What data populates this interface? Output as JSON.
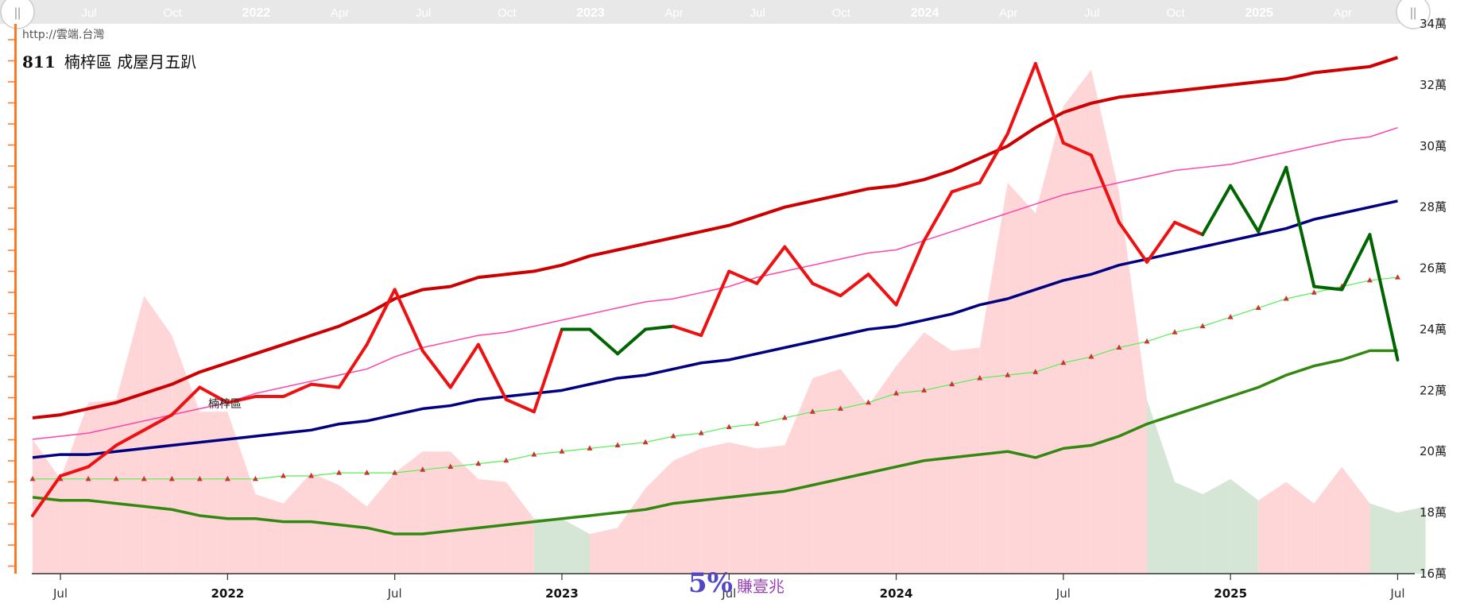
{
  "url": "http://雲端.台灣",
  "title": {
    "num": "811",
    "text": "楠梓區 成屋月五趴"
  },
  "annotation": "楠梓區",
  "logo": {
    "big": "5%",
    "small": "賺壹兆"
  },
  "navigator": {
    "handle_left": "||",
    "handle_right": "||",
    "labels": [
      {
        "t": "Jul",
        "m": 1,
        "bold": false
      },
      {
        "t": "Oct",
        "m": 4,
        "bold": false
      },
      {
        "t": "2022",
        "m": 7,
        "bold": true
      },
      {
        "t": "Apr",
        "m": 10,
        "bold": false
      },
      {
        "t": "Jul",
        "m": 13,
        "bold": false
      },
      {
        "t": "Oct",
        "m": 16,
        "bold": false
      },
      {
        "t": "2023",
        "m": 19,
        "bold": true
      },
      {
        "t": "Apr",
        "m": 22,
        "bold": false
      },
      {
        "t": "Jul",
        "m": 25,
        "bold": false
      },
      {
        "t": "Oct",
        "m": 28,
        "bold": false
      },
      {
        "t": "2024",
        "m": 31,
        "bold": true
      },
      {
        "t": "Apr",
        "m": 34,
        "bold": false
      },
      {
        "t": "Jul",
        "m": 37,
        "bold": false
      },
      {
        "t": "Oct",
        "m": 40,
        "bold": false
      },
      {
        "t": "2025",
        "m": 43,
        "bold": true
      },
      {
        "t": "Apr",
        "m": 46,
        "bold": false
      },
      {
        "t": "Jul",
        "m": 49,
        "bold": false
      }
    ]
  },
  "chart_data": {
    "type": "line",
    "x_start": "2021-06",
    "x_end": "2025-07",
    "x_ticks": [
      {
        "label": "Jul",
        "m": 1,
        "bold": false
      },
      {
        "label": "2022",
        "m": 7,
        "bold": true
      },
      {
        "label": "Jul",
        "m": 13,
        "bold": false
      },
      {
        "label": "2023",
        "m": 19,
        "bold": true
      },
      {
        "label": "2023-Jul",
        "m": 25,
        "bold": false
      },
      {
        "label": "2024",
        "m": 31,
        "bold": true
      },
      {
        "label": "Jul",
        "m": 37,
        "bold": false
      },
      {
        "label": "2025",
        "m": 43,
        "bold": true
      },
      {
        "label": "Jul",
        "m": 49,
        "bold": false
      }
    ],
    "y_ticks": [
      {
        "label": "16萬",
        "v": 16
      },
      {
        "label": "18萬",
        "v": 18
      },
      {
        "label": "20萬",
        "v": 20
      },
      {
        "label": "22萬",
        "v": 22
      },
      {
        "label": "24萬",
        "v": 24
      },
      {
        "label": "26萬",
        "v": 26
      },
      {
        "label": "28萬",
        "v": 28
      },
      {
        "label": "30萬",
        "v": 30
      },
      {
        "label": "32萬",
        "v": 32
      },
      {
        "label": "34萬",
        "v": 34
      }
    ],
    "ylim": [
      16,
      34
    ],
    "area": {
      "pink": "#ffd6d8",
      "green": "#d6e6d6",
      "values": [
        20.4,
        19.1,
        21.6,
        21.7,
        25.1,
        23.8,
        21.3,
        21.3,
        18.6,
        18.3,
        19.3,
        18.9,
        18.2,
        19.3,
        20.0,
        20.0,
        19.1,
        19.0,
        17.8,
        17.8,
        17.3,
        17.5,
        18.8,
        19.7,
        20.1,
        20.3,
        20.1,
        20.2,
        22.4,
        22.7,
        21.5,
        22.8,
        23.9,
        23.3,
        23.4,
        28.8,
        27.8,
        31.3,
        32.5,
        28.5,
        21.7,
        19.0,
        18.6,
        19.1,
        18.4,
        19.0,
        18.3,
        19.5,
        18.3,
        18.0,
        18.2
      ],
      "green_months": [
        16,
        18,
        19,
        20,
        40,
        41,
        42,
        43,
        44,
        46,
        48,
        49,
        50
      ]
    },
    "series": [
      {
        "role": "price",
        "color": "#ee1111",
        "dip_color": "#006400",
        "width": 4,
        "values": [
          17.9,
          19.2,
          19.5,
          20.2,
          20.7,
          21.2,
          22.1,
          21.6,
          21.8,
          21.8,
          22.2,
          22.1,
          23.5,
          25.3,
          23.3,
          22.1,
          23.5,
          21.7,
          21.3,
          24.0,
          24.0,
          23.2,
          24.0,
          24.1,
          23.8,
          25.9,
          25.5,
          26.7,
          25.5,
          25.1,
          25.8,
          24.8,
          26.9,
          28.5,
          28.8,
          30.4,
          32.7,
          30.1,
          29.7,
          27.5,
          26.2,
          27.5,
          27.1,
          28.7,
          27.2,
          29.3,
          25.4,
          25.3,
          27.1,
          23.0
        ]
      },
      {
        "role": "upper",
        "color": "#cc0000",
        "width": 4,
        "values": [
          21.1,
          21.2,
          21.4,
          21.6,
          21.9,
          22.2,
          22.6,
          22.9,
          23.2,
          23.5,
          23.8,
          24.1,
          24.5,
          25.0,
          25.3,
          25.4,
          25.7,
          25.8,
          25.9,
          26.1,
          26.4,
          26.6,
          26.8,
          27.0,
          27.2,
          27.4,
          27.7,
          28.0,
          28.2,
          28.4,
          28.6,
          28.7,
          28.9,
          29.2,
          29.6,
          30.0,
          30.6,
          31.1,
          31.4,
          31.6,
          31.7,
          31.8,
          31.9,
          32.0,
          32.1,
          32.2,
          32.4,
          32.5,
          32.6,
          32.9
        ]
      },
      {
        "role": "pink-mid",
        "color": "#ff44aa",
        "width": 1.5,
        "values": [
          20.4,
          20.5,
          20.6,
          20.8,
          21.0,
          21.2,
          21.4,
          21.6,
          21.9,
          22.1,
          22.3,
          22.5,
          22.7,
          23.1,
          23.4,
          23.6,
          23.8,
          23.9,
          24.1,
          24.3,
          24.5,
          24.7,
          24.9,
          25.0,
          25.2,
          25.4,
          25.7,
          25.9,
          26.1,
          26.3,
          26.5,
          26.6,
          26.9,
          27.2,
          27.5,
          27.8,
          28.1,
          28.4,
          28.6,
          28.8,
          29.0,
          29.2,
          29.3,
          29.4,
          29.6,
          29.8,
          30.0,
          30.2,
          30.3,
          30.6
        ]
      },
      {
        "role": "mid",
        "color": "#000080",
        "width": 3.5,
        "values": [
          19.8,
          19.9,
          19.9,
          20.0,
          20.1,
          20.2,
          20.3,
          20.4,
          20.5,
          20.6,
          20.7,
          20.9,
          21.0,
          21.2,
          21.4,
          21.5,
          21.7,
          21.8,
          21.9,
          22.0,
          22.2,
          22.4,
          22.5,
          22.7,
          22.9,
          23.0,
          23.2,
          23.4,
          23.6,
          23.8,
          24.0,
          24.1,
          24.3,
          24.5,
          24.8,
          25.0,
          25.3,
          25.6,
          25.8,
          26.1,
          26.3,
          26.5,
          26.7,
          26.9,
          27.1,
          27.3,
          27.6,
          27.8,
          28.0,
          28.2
        ]
      },
      {
        "role": "lower",
        "color": "#338811",
        "width": 3.5,
        "values": [
          18.5,
          18.4,
          18.4,
          18.3,
          18.2,
          18.1,
          17.9,
          17.8,
          17.8,
          17.7,
          17.7,
          17.6,
          17.5,
          17.3,
          17.3,
          17.4,
          17.5,
          17.6,
          17.7,
          17.8,
          17.9,
          18.0,
          18.1,
          18.3,
          18.4,
          18.5,
          18.6,
          18.7,
          18.9,
          19.1,
          19.3,
          19.5,
          19.7,
          19.8,
          19.9,
          20.0,
          19.8,
          20.1,
          20.2,
          20.5,
          20.9,
          21.2,
          21.5,
          21.8,
          22.1,
          22.5,
          22.8,
          23.0,
          23.3,
          23.3
        ]
      },
      {
        "role": "dotted",
        "color": "#55ee55",
        "marker_color": "#cc3333",
        "width": 1.2,
        "values": [
          19.1,
          19.1,
          19.1,
          19.1,
          19.1,
          19.1,
          19.1,
          19.1,
          19.1,
          19.2,
          19.2,
          19.3,
          19.3,
          19.3,
          19.4,
          19.5,
          19.6,
          19.7,
          19.9,
          20.0,
          20.1,
          20.2,
          20.3,
          20.5,
          20.6,
          20.8,
          20.9,
          21.1,
          21.3,
          21.4,
          21.6,
          21.9,
          22.0,
          22.2,
          22.4,
          22.5,
          22.6,
          22.9,
          23.1,
          23.4,
          23.6,
          23.9,
          24.1,
          24.4,
          24.7,
          25.0,
          25.2,
          25.4,
          25.6,
          25.7
        ]
      }
    ]
  }
}
